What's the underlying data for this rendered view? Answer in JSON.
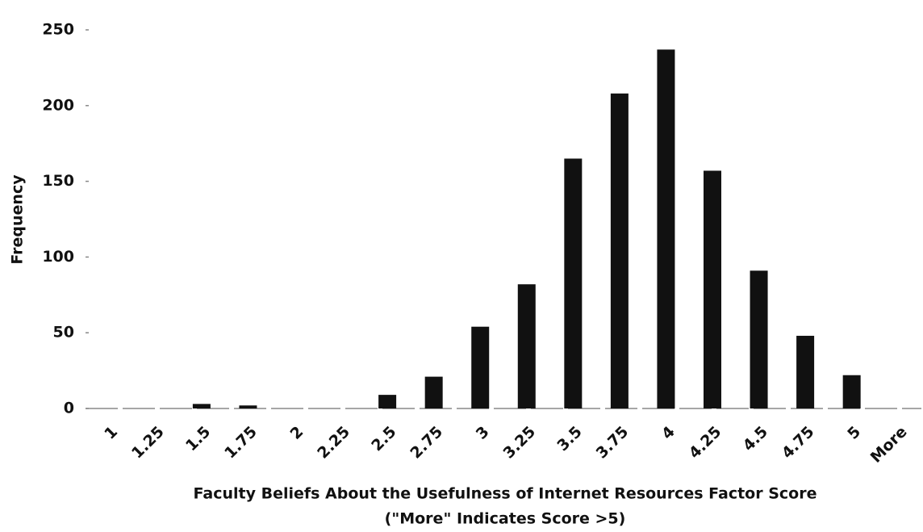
{
  "chart_data": {
    "type": "bar",
    "categories": [
      "1",
      "1.25",
      "1.5",
      "1.75",
      "2",
      "2.25",
      "2.5",
      "2.75",
      "3",
      "3.25",
      "3.5",
      "3.75",
      "4",
      "4.25",
      "4.5",
      "4.75",
      "5",
      "More"
    ],
    "values": [
      0,
      0,
      3,
      2,
      0,
      0,
      9,
      21,
      54,
      82,
      165,
      208,
      237,
      157,
      91,
      48,
      22,
      0
    ],
    "color": "#111111",
    "ylabel": "Frequency",
    "xlabel": [
      "Faculty Beliefs About the Usefulness of Internet Resources Factor Score",
      "(\"More\" Indicates Score >5)"
    ],
    "ylim": [
      0,
      250
    ],
    "yticks": [
      0,
      50,
      100,
      150,
      200,
      250
    ],
    "grid": false
  }
}
